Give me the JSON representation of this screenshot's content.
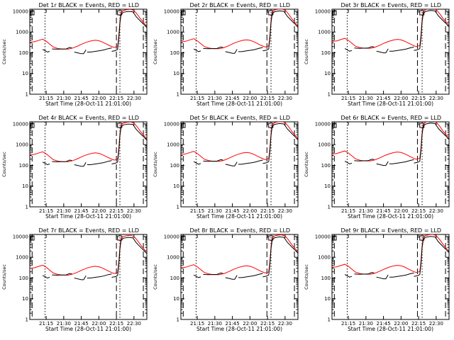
{
  "colors": {
    "events": "#000000",
    "lld": "#ff0000",
    "axis": "#000000"
  },
  "chart_data": [
    {
      "type": "line",
      "title": "Det 1r BLACK = Events, RED = LLD",
      "xlabel": "Start Time (28-Oct-11 21:01:00)",
      "ylabel": "Counts/sec",
      "x_ticks": [
        "21:15",
        "21:30",
        "21:45",
        "22:00",
        "22:15",
        "22:30"
      ],
      "y_ticks": [
        "1",
        "10",
        "100",
        "1000",
        "10000"
      ],
      "yscale": "log",
      "ylim": [
        1,
        10000
      ],
      "series": [
        {
          "name": "Events",
          "color": "#000000"
        },
        {
          "name": "LLD",
          "color": "#ff0000"
        }
      ]
    },
    {
      "type": "line",
      "title": "Det 2r BLACK = Events, RED = LLD",
      "xlabel": "Start Time (28-Oct-11 21:01:00)",
      "ylabel": "Counts/sec",
      "x_ticks": [
        "21:15",
        "21:30",
        "21:45",
        "22:00",
        "22:15",
        "22:30"
      ],
      "y_ticks": [
        "1",
        "10",
        "100",
        "1000",
        "10000"
      ],
      "yscale": "log",
      "ylim": [
        1,
        10000
      ],
      "series": [
        {
          "name": "Events",
          "color": "#000000"
        },
        {
          "name": "LLD",
          "color": "#ff0000"
        }
      ]
    },
    {
      "type": "line",
      "title": "Det 3r BLACK = Events, RED = LLD",
      "xlabel": "Start Time (28-Oct-11 21:01:00)",
      "ylabel": "Counts/sec",
      "x_ticks": [
        "21:15",
        "21:30",
        "21:45",
        "22:00",
        "22:15",
        "22:30"
      ],
      "y_ticks": [
        "1",
        "10",
        "100",
        "1000",
        "10000"
      ],
      "yscale": "log",
      "ylim": [
        1,
        10000
      ],
      "series": [
        {
          "name": "Events",
          "color": "#000000"
        },
        {
          "name": "LLD",
          "color": "#ff0000"
        }
      ]
    },
    {
      "type": "line",
      "title": "Det 4r BLACK = Events, RED = LLD",
      "xlabel": "Start Time (28-Oct-11 21:01:00)",
      "ylabel": "Counts/sec",
      "x_ticks": [
        "21:15",
        "21:30",
        "21:45",
        "22:00",
        "22:15",
        "22:30"
      ],
      "y_ticks": [
        "1",
        "10",
        "100",
        "1000",
        "10000"
      ],
      "yscale": "log",
      "ylim": [
        1,
        10000
      ],
      "series": [
        {
          "name": "Events",
          "color": "#000000"
        },
        {
          "name": "LLD",
          "color": "#ff0000"
        }
      ]
    },
    {
      "type": "line",
      "title": "Det 5r BLACK = Events, RED = LLD",
      "xlabel": "Start Time (28-Oct-11 21:01:00)",
      "ylabel": "Counts/sec",
      "x_ticks": [
        "21:15",
        "21:30",
        "21:45",
        "22:00",
        "22:15",
        "22:30"
      ],
      "y_ticks": [
        "1",
        "10",
        "100",
        "1000",
        "10000"
      ],
      "yscale": "log",
      "ylim": [
        1,
        10000
      ],
      "series": [
        {
          "name": "Events",
          "color": "#000000"
        },
        {
          "name": "LLD",
          "color": "#ff0000"
        }
      ]
    },
    {
      "type": "line",
      "title": "Det 6r BLACK = Events, RED = LLD",
      "xlabel": "Start Time (28-Oct-11 21:01:00)",
      "ylabel": "Counts/sec",
      "x_ticks": [
        "21:15",
        "21:30",
        "21:45",
        "22:00",
        "22:15",
        "22:30"
      ],
      "y_ticks": [
        "1",
        "10",
        "100",
        "1000",
        "10000"
      ],
      "yscale": "log",
      "ylim": [
        1,
        10000
      ],
      "series": [
        {
          "name": "Events",
          "color": "#000000"
        },
        {
          "name": "LLD",
          "color": "#ff0000"
        }
      ]
    },
    {
      "type": "line",
      "title": "Det 7r BLACK = Events, RED = LLD",
      "xlabel": "Start Time (28-Oct-11 21:01:00)",
      "ylabel": "Counts/sec",
      "x_ticks": [
        "21:15",
        "21:30",
        "21:45",
        "22:00",
        "22:15",
        "22:30"
      ],
      "y_ticks": [
        "1",
        "10",
        "100",
        "1000",
        "10000"
      ],
      "yscale": "log",
      "ylim": [
        1,
        10000
      ],
      "series": [
        {
          "name": "Events",
          "color": "#000000"
        },
        {
          "name": "LLD",
          "color": "#ff0000"
        }
      ]
    },
    {
      "type": "line",
      "title": "Det 8r BLACK = Events, RED = LLD",
      "xlabel": "Start Time (28-Oct-11 21:01:00)",
      "ylabel": "Counts/sec",
      "x_ticks": [
        "21:15",
        "21:30",
        "21:45",
        "22:00",
        "22:15",
        "22:30"
      ],
      "y_ticks": [
        "1",
        "10",
        "100",
        "1000",
        "10000"
      ],
      "yscale": "log",
      "ylim": [
        1,
        10000
      ],
      "series": [
        {
          "name": "Events",
          "color": "#000000"
        },
        {
          "name": "LLD",
          "color": "#ff0000"
        }
      ]
    },
    {
      "type": "line",
      "title": "Det 9r BLACK = Events, RED = LLD",
      "xlabel": "Start Time (28-Oct-11 21:01:00)",
      "ylabel": "Counts/sec",
      "x_ticks": [
        "21:15",
        "21:30",
        "21:45",
        "22:00",
        "22:15",
        "22:30"
      ],
      "y_ticks": [
        "1",
        "10",
        "100",
        "1000",
        "10000"
      ],
      "yscale": "log",
      "ylim": [
        1,
        10000
      ],
      "series": [
        {
          "name": "Events",
          "color": "#000000"
        },
        {
          "name": "LLD",
          "color": "#ff0000"
        }
      ]
    }
  ]
}
